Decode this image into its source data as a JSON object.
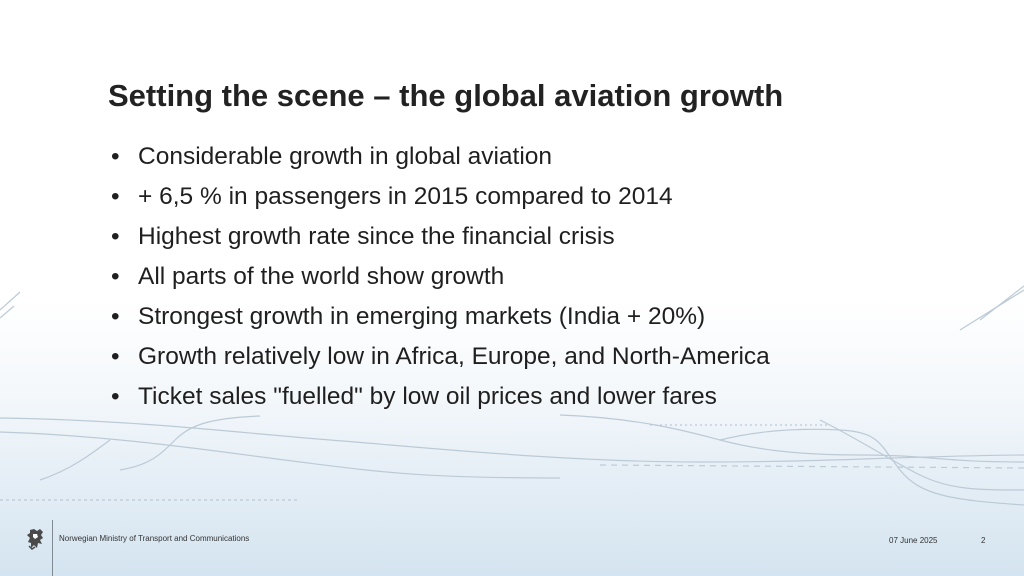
{
  "slide": {
    "title": "Setting the scene – the global aviation growth",
    "bullets": [
      "Considerable growth in global aviation",
      "+ 6,5 % in passengers in 2015 compared to 2014",
      "Highest growth rate since the financial crisis",
      "All parts of the world show growth",
      "Strongest growth in emerging markets (India + 20%)",
      "Growth relatively low in Africa, Europe, and North-America",
      "Ticket sales \"fuelled\" by low oil prices and lower fares"
    ],
    "bullet_symbol": "•"
  },
  "footer": {
    "ministry": "Norwegian Ministry of Transport and Communications",
    "date": "07 June 2025",
    "page_number": "2",
    "logo_icon": "norwegian-lion-coat-of-arms-icon"
  },
  "colors": {
    "text": "#1f1f1f",
    "title": "#222222",
    "line_art": "#b8c6d2"
  }
}
